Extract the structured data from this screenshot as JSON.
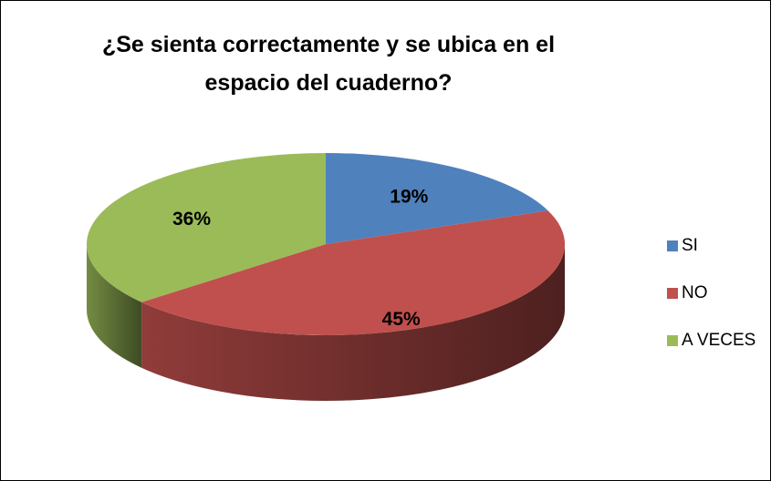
{
  "chart_data": {
    "type": "pie",
    "title": "¿Se sienta correctamente y se ubica en el espacio del cuaderno?",
    "categories": [
      "SI",
      "NO",
      "A VECES"
    ],
    "values": [
      19,
      45,
      36
    ],
    "value_labels": [
      "19%",
      "45%",
      "36%"
    ],
    "colors": [
      "#4f81bd",
      "#c0504d",
      "#9bbb59"
    ],
    "legend": "right"
  }
}
